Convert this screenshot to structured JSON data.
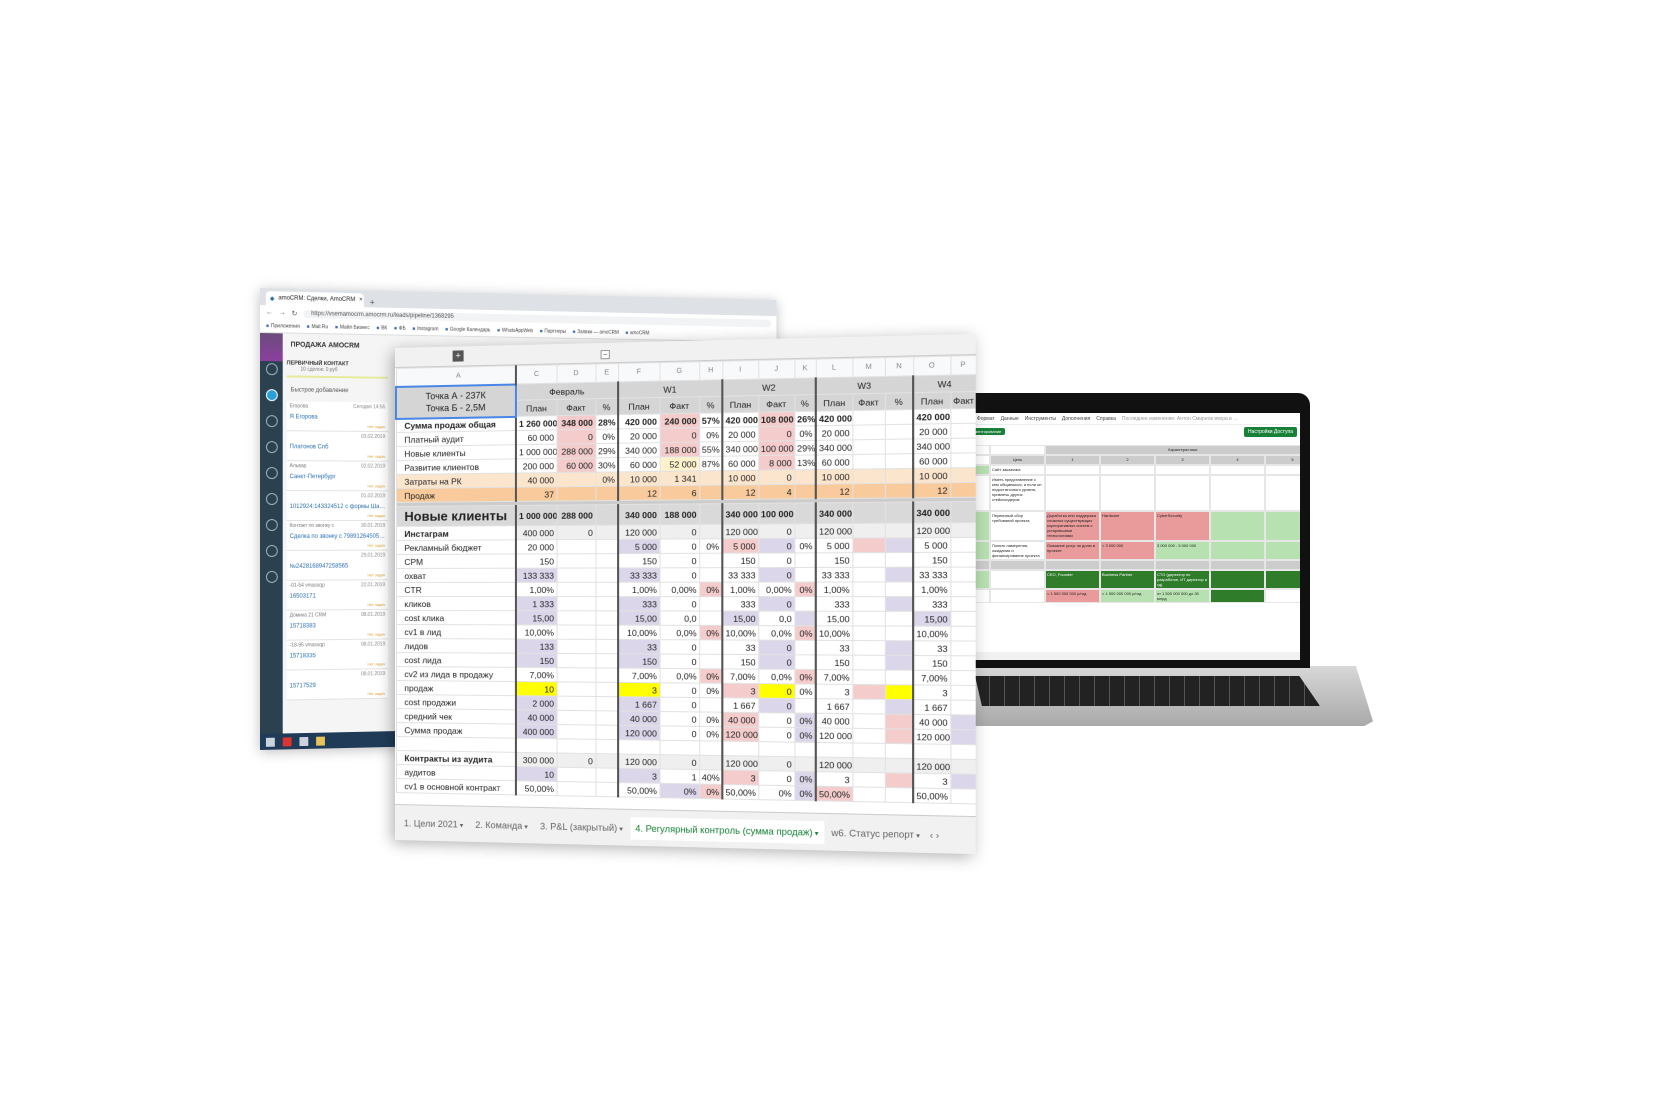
{
  "crm": {
    "tab_title": "amoCRM: Сделки, AmoCRM",
    "url": "https://vsemamocrm.amocrm.ru/leads/pipeline/1368295",
    "bookmarks": [
      "Приложения",
      "Mail.Ru",
      "Майл Бизнес",
      "ВК",
      "ФБ",
      "Instagram",
      "Google Календарь",
      "WhatsAppWeb",
      "Партнеры",
      "Заявки — amoCRM",
      "amoCRM"
    ],
    "pipeline_title": "ПРОДАЖА AMOCRM",
    "stage": "ПЕРВИЧНЫЙ КОНТАКТ",
    "stage_summary": "10 сделок: 0 руб",
    "quick_add": "Быстрое добавление",
    "no_tasks": "Нет задач",
    "leads": [
      {
        "name": "Егорова",
        "title": "Я Егорова",
        "date": "Сегодня 14:56"
      },
      {
        "name": "",
        "title": "Платонов Спб",
        "date": "03.02.2019"
      },
      {
        "name": "Альвар",
        "title": "Санкт-Петербург",
        "date": "02.02.2019"
      },
      {
        "name": "",
        "title": "1012924:143324512 с формы Шап...",
        "date": "01.02.2019"
      },
      {
        "name": "Контакт по звонку с",
        "title": "Сделка по звонку с 79891264505 из ...",
        "date": "30.01.2019"
      },
      {
        "name": "",
        "title": "№2428168947258565",
        "date": "29.01.2019"
      },
      {
        "name": "-01-54 vmassqp",
        "title": "16503171",
        "date": "22.01.2019"
      },
      {
        "name": "Домика 21 CRM",
        "title": "15718383",
        "date": "08.01.2019"
      },
      {
        "name": "-18-95 vmassqp",
        "title": "15718335",
        "date": "08.01.2019"
      },
      {
        "name": "",
        "title": "15717529",
        "date": "08.01.2019"
      }
    ]
  },
  "sheet": {
    "column_letters": [
      "A",
      "C",
      "D",
      "E",
      "F",
      "G",
      "H",
      "I",
      "J",
      "K",
      "L",
      "M",
      "N",
      "O",
      "P"
    ],
    "selected_cell": [
      "Точка А - 237К",
      "Точка Б - 2,5М"
    ],
    "periods": [
      "Февраль",
      "W1",
      "W2",
      "W3",
      "W4"
    ],
    "subheaders": [
      "План",
      "Факт",
      "%"
    ],
    "colors": {
      "purple": "#dcd6ea",
      "pink": "#f4cccc",
      "yellow": "#ffff00",
      "light_orange": "#fce5cd",
      "orange": "#f9cb9c",
      "active_tab": "#188038"
    },
    "rows": [
      {
        "label": "Сумма продаж общая",
        "style": "bold",
        "fill": "--r--r--r------",
        "cells": [
          "1 260 000",
          "348 000",
          "28%",
          "420 000",
          "240 000",
          "57%",
          "420 000",
          "108 000",
          "26%",
          "420 000",
          "",
          "",
          "420 000",
          ""
        ]
      },
      {
        "label": "Платный аудит",
        "style": "",
        "fill": "--r--r--r------",
        "cells": [
          "60 000",
          "0",
          "0%",
          "20 000",
          "0",
          "0%",
          "20 000",
          "0",
          "0%",
          "20 000",
          "",
          "",
          "20 000",
          ""
        ]
      },
      {
        "label": "Новые клиенты",
        "style": "",
        "fill": "--r--r--r------",
        "cells": [
          "1 000 000",
          "288 000",
          "29%",
          "340 000",
          "188 000",
          "55%",
          "340 000",
          "100 000",
          "29%",
          "340 000",
          "",
          "",
          "340 000",
          ""
        ]
      },
      {
        "label": "Развитие клиентов",
        "style": "",
        "fill": "--r--l--r------",
        "cells": [
          "200 000",
          "60 000",
          "30%",
          "60 000",
          "52 000",
          "87%",
          "60 000",
          "8 000",
          "13%",
          "60 000",
          "",
          "",
          "60 000",
          ""
        ]
      },
      {
        "label": "Затраты на РК",
        "style": "lo",
        "fill": "---------------",
        "cells": [
          "40 000",
          "",
          "0%",
          "10 000",
          "1 341",
          "",
          "10 000",
          "0",
          "",
          "10 000",
          "",
          "",
          "10 000",
          ""
        ]
      },
      {
        "label": "Продаж",
        "style": "or",
        "fill": "---------------",
        "cells": [
          "37",
          "",
          "",
          "12",
          "6",
          "",
          "12",
          "4",
          "",
          "12",
          "",
          "",
          "12",
          ""
        ]
      },
      {
        "label": "Новые клиенты",
        "style": "big",
        "fill": "---------------",
        "cells": [
          "1 000 000",
          "288 000",
          "",
          "340 000",
          "188 000",
          "",
          "340 000",
          "100 000",
          "",
          "340 000",
          "",
          "",
          "340 000",
          ""
        ]
      },
      {
        "label": "Инстаграм",
        "style": "sub",
        "fill": "---------------",
        "cells": [
          "400 000",
          "0",
          "",
          "120 000",
          "0",
          "",
          "120 000",
          "0",
          "",
          "120 000",
          "",
          "",
          "120 000",
          ""
        ]
      },
      {
        "label": "Рекламный бюджет",
        "style": "",
        "fill": "----p--rp--rp--p",
        "cells": [
          "20 000",
          "",
          "",
          "5 000",
          "0",
          "0%",
          "5 000",
          "0",
          "0%",
          "5 000",
          "",
          "",
          "5 000",
          ""
        ]
      },
      {
        "label": "CPM",
        "style": "",
        "fill": "---------------",
        "cells": [
          "150",
          "",
          "",
          "150",
          "0",
          "",
          "150",
          "0",
          "",
          "150",
          "",
          "",
          "150",
          ""
        ]
      },
      {
        "label": "охват",
        "style": "",
        "fill": "-p--p---p---p--p",
        "cells": [
          "133 333",
          "",
          "",
          "33 333",
          "0",
          "",
          "33 333",
          "0",
          "",
          "33 333",
          "",
          "",
          "33 333",
          ""
        ]
      },
      {
        "label": "CTR",
        "style": "",
        "fill": "------r--r------",
        "cells": [
          "1,00%",
          "",
          "",
          "1,00%",
          "0,00%",
          "0%",
          "1,00%",
          "0,00%",
          "0%",
          "1,00%",
          "",
          "",
          "1,00%",
          ""
        ]
      },
      {
        "label": "кликов",
        "style": "",
        "fill": "-p--p---p---p--p",
        "cells": [
          "1 333",
          "",
          "",
          "333",
          "0",
          "",
          "333",
          "0",
          "",
          "333",
          "",
          "",
          "333",
          ""
        ]
      },
      {
        "label": "cost клика",
        "style": "",
        "fill": "-p--p--p-p---p--p",
        "cells": [
          "15,00",
          "",
          "",
          "15,00",
          "0,0",
          "",
          "15,00",
          "0,0",
          "",
          "15,00",
          "",
          "",
          "15,00",
          ""
        ]
      },
      {
        "label": "cv1 в лид",
        "style": "",
        "fill": "------r--r------",
        "cells": [
          "10,00%",
          "",
          "",
          "10,00%",
          "0,0%",
          "0%",
          "10,00%",
          "0,0%",
          "0%",
          "10,00%",
          "",
          "",
          "10,00%",
          ""
        ]
      },
      {
        "label": "лидов",
        "style": "",
        "fill": "-p--p---p---p--p",
        "cells": [
          "133",
          "",
          "",
          "33",
          "0",
          "",
          "33",
          "0",
          "",
          "33",
          "",
          "",
          "33",
          ""
        ]
      },
      {
        "label": "cost лида",
        "style": "",
        "fill": "-p--p---p---p--p",
        "cells": [
          "150",
          "",
          "",
          "150",
          "0",
          "",
          "150",
          "0",
          "",
          "150",
          "",
          "",
          "150",
          ""
        ]
      },
      {
        "label": "cv2 из лида в продажу",
        "style": "",
        "fill": "------r--r------",
        "cells": [
          "7,00%",
          "",
          "",
          "7,00%",
          "0,0%",
          "0%",
          "7,00%",
          "0,0%",
          "0%",
          "7,00%",
          "",
          "",
          "7,00%",
          ""
        ]
      },
      {
        "label": "продаж",
        "style": "",
        "fill": "-y--y--ry--ry--y",
        "cells": [
          "10",
          "",
          "",
          "3",
          "0",
          "0%",
          "3",
          "0",
          "0%",
          "3",
          "",
          "",
          "3",
          ""
        ]
      },
      {
        "label": "cost продажи",
        "style": "",
        "fill": "-p--p---p---p--p",
        "cells": [
          "2 000",
          "",
          "",
          "1 667",
          "0",
          "",
          "1 667",
          "0",
          "",
          "1 667",
          "",
          "",
          "1 667",
          ""
        ]
      },
      {
        "label": "средний чек",
        "style": "",
        "fill": "-p--p--r-p--r-p--p",
        "cells": [
          "40 000",
          "",
          "",
          "40 000",
          "0",
          "0%",
          "40 000",
          "0",
          "0%",
          "40 000",
          "",
          "",
          "40 000",
          ""
        ]
      },
      {
        "label": "Сумма продаж",
        "style": "",
        "fill": "-p--p--r-p--r-p--p",
        "cells": [
          "400 000",
          "",
          "",
          "120 000",
          "0",
          "0%",
          "120 000",
          "0",
          "0%",
          "120 000",
          "",
          "",
          "120 000",
          ""
        ]
      },
      {
        "label": "",
        "style": "",
        "fill": "---------------",
        "cells": [
          "",
          "",
          "",
          "",
          "",
          "",
          "",
          "",
          "",
          "",
          "",
          "",
          "",
          ""
        ]
      },
      {
        "label": "Контракты из аудита",
        "style": "sub",
        "fill": "---------------",
        "cells": [
          "300 000",
          "0",
          "",
          "120 000",
          "0",
          "",
          "120 000",
          "0",
          "",
          "120 000",
          "",
          "",
          "120 000",
          ""
        ]
      },
      {
        "label": "аудитов",
        "style": "",
        "fill": "-p--p--r-p--r-p--p",
        "cells": [
          "10",
          "",
          "",
          "3",
          "1",
          "40%",
          "3",
          "0",
          "0%",
          "3",
          "",
          "",
          "3",
          ""
        ]
      },
      {
        "label": "cv1 в основной контракт",
        "style": "",
        "fill": "-----pr--pr-----",
        "cells": [
          "50,00%",
          "",
          "",
          "50,00%",
          "0%",
          "0%",
          "50,00%",
          "0%",
          "0%",
          "50,00%",
          "",
          "",
          "50,00%",
          ""
        ]
      }
    ],
    "tabs": [
      {
        "label": "1. Цели 2021",
        "active": false
      },
      {
        "label": "2. Команда",
        "active": false
      },
      {
        "label": "3. P&L (закрытый)",
        "active": false
      },
      {
        "label": "4. Регулярный контроль (сумма продаж)",
        "active": true
      },
      {
        "label": "w6. Статус репорт",
        "active": false
      }
    ]
  },
  "laptop": {
    "menu": [
      "Правка",
      "Формат",
      "Данные",
      "Инструменты",
      "Дополнения",
      "Справка"
    ],
    "last_edit": "Последнее изменение: Антон Смирнов вчера в ...",
    "share_button": "Настройки Доступа",
    "filter_chip": "Только комментирование",
    "grid_header": "Характеристики",
    "goal": "Цель",
    "numbers": [
      "1",
      "2",
      "3",
      "4",
      "5"
    ],
    "cells": {
      "site": "Сайт заказчика",
      "site_desc": "Иметь представление с кем общаешься, и если он недостаточного уровня, привлечь других стейкхолдеров",
      "first": "Первичный сбор требований проекта",
      "support": "Доработка или поддержка сложных существующих корпоративных систем с устаревшими технологиями",
      "hardware": "Hardware",
      "cyber": "CyberSecurity",
      "measure": "Понять намерения, ожидания и финансирование проекта",
      "share": "Оказание услуг за долю в проекте",
      "lt3": "< 3 000 000",
      "r35": "3 000 000 - 5 000 000",
      "ceo": "CEO, Founder",
      "bp": "Business Partner",
      "cto": "CTO (директор по разработке, ИТ директор и тд)",
      "rev1": "< 1 500 000 000 р/год",
      "rev2": "> 1 500 000 000 р/год",
      "rev3": "от 1 500 000 000 до 30 млрд"
    },
    "sheet_tab": "Лист22"
  }
}
